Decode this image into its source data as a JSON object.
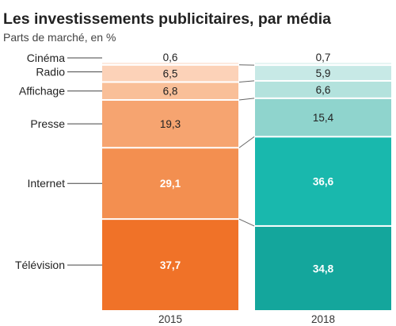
{
  "chart_data": {
    "type": "bar",
    "stacked": true,
    "normalized": true,
    "title": "Les investissements publicitaires, par média",
    "subtitle": "Parts de marché, en %",
    "categories": [
      "2015",
      "2018"
    ],
    "series": [
      {
        "name": "Cinéma",
        "values": [
          0.6,
          0.7
        ],
        "labels": [
          "0,6",
          "0,7"
        ],
        "colors": [
          "#fde8dc",
          "#e6f5f3"
        ]
      },
      {
        "name": "Radio",
        "values": [
          6.5,
          5.9
        ],
        "labels": [
          "6,5",
          "5,9"
        ],
        "colors": [
          "#fcd2b8",
          "#c7e9e6"
        ]
      },
      {
        "name": "Affichage",
        "values": [
          6.8,
          6.6
        ],
        "labels": [
          "6,8",
          "6,6"
        ],
        "colors": [
          "#f9bf98",
          "#b3e2dd"
        ]
      },
      {
        "name": "Presse",
        "values": [
          19.3,
          15.4
        ],
        "labels": [
          "19,3",
          "15,4"
        ],
        "colors": [
          "#f6a470",
          "#8fd4cd"
        ]
      },
      {
        "name": "Internet",
        "values": [
          29.1,
          36.6
        ],
        "labels": [
          "29,1",
          "36,6"
        ],
        "colors": [
          "#f38f50",
          "#19b8ad"
        ]
      },
      {
        "name": "Télévision",
        "values": [
          37.7,
          34.8
        ],
        "labels": [
          "37,7",
          "34,8"
        ],
        "colors": [
          "#f07228",
          "#14a69c"
        ]
      }
    ],
    "ylim": [
      0,
      100
    ],
    "grid": false,
    "legend": "left"
  }
}
